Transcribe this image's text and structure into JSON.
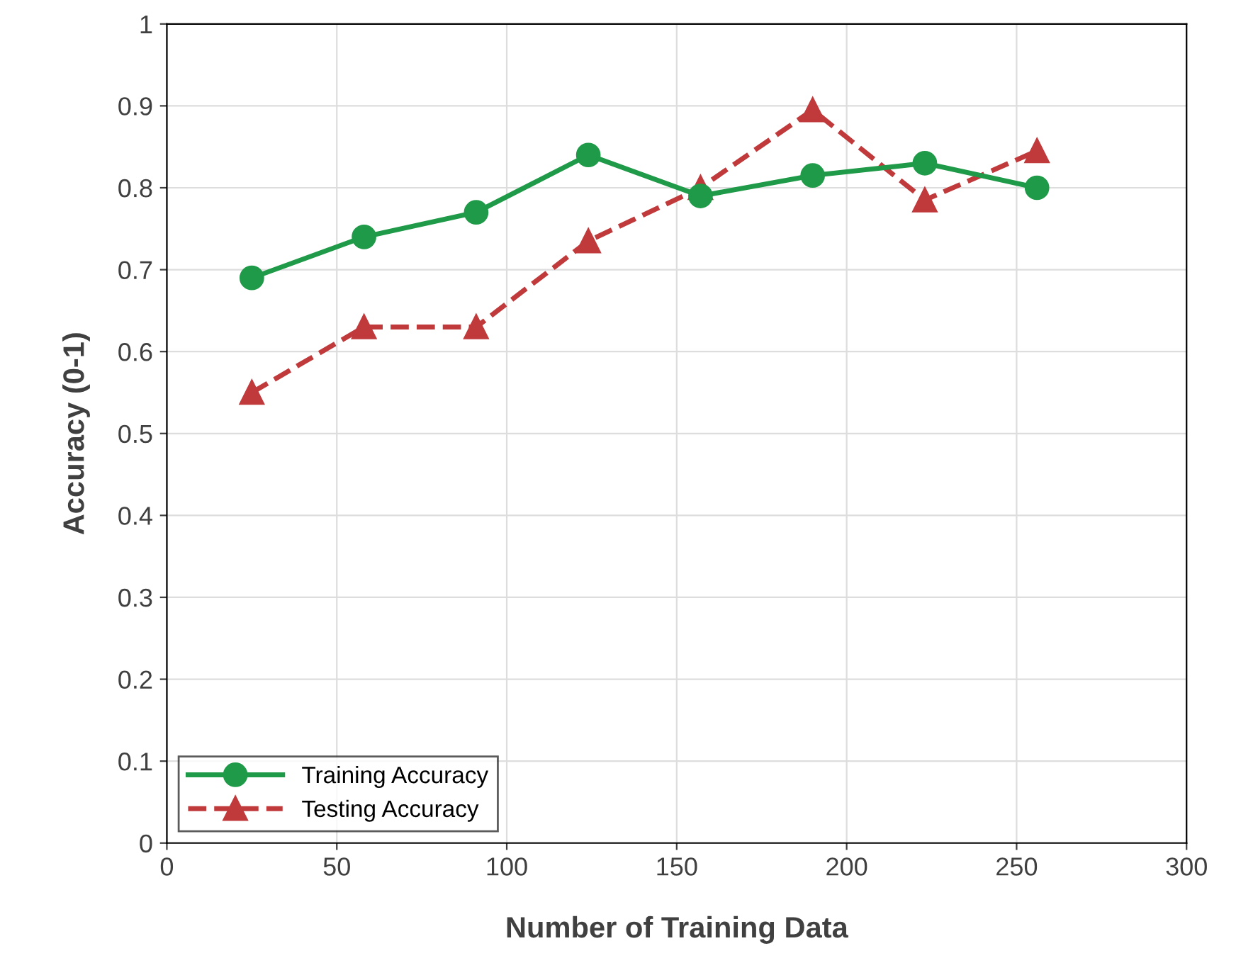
{
  "chart_data": {
    "type": "line",
    "xlabel": "Number of Training Data",
    "ylabel": "Accuracy (0-1)",
    "x": [
      25,
      58,
      91,
      124,
      157,
      190,
      223,
      256
    ],
    "series": [
      {
        "name": "Training Accuracy",
        "color": "#1f9a48",
        "values": [
          0.69,
          0.74,
          0.77,
          0.84,
          0.79,
          0.815,
          0.83,
          0.8
        ],
        "marker": "circle",
        "line_style": "solid"
      },
      {
        "name": "Testing Accuracy",
        "color": "#c0393b",
        "values": [
          0.55,
          0.63,
          0.63,
          0.735,
          0.8,
          0.895,
          0.785,
          0.845
        ],
        "marker": "triangle",
        "line_style": "dashed"
      }
    ],
    "xlim": [
      0,
      300
    ],
    "xticks": [
      0,
      50,
      100,
      150,
      200,
      250,
      300
    ],
    "ylim": [
      0,
      1
    ],
    "yticks": [
      0,
      0.1,
      0.2,
      0.3,
      0.4,
      0.5,
      0.6,
      0.7,
      0.8,
      0.9,
      1
    ],
    "grid": true,
    "legend": "bottom left"
  }
}
